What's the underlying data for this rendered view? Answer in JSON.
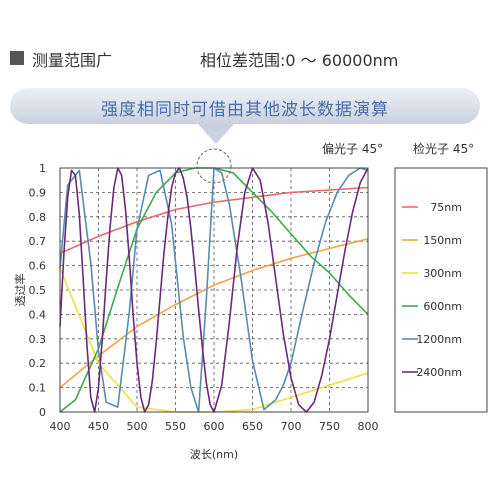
{
  "header": {
    "title": "测量范围广",
    "range": "相位差范围:0 ～ 60000nm"
  },
  "banner": {
    "text": "强度相同时可借由其他波长数据演算"
  },
  "polarizer_label": "偏光子 45°",
  "analyzer_label": "检光子 45°",
  "chart_data": {
    "type": "line",
    "xlabel": "波长(nm)",
    "ylabel": "透过率",
    "xlim": [
      400,
      800
    ],
    "ylim": [
      0,
      1
    ],
    "xticks": [
      400,
      450,
      500,
      550,
      600,
      650,
      700,
      750,
      800
    ],
    "yticks": [
      0,
      0.1,
      0.2,
      0.3,
      0.4,
      0.5,
      0.6,
      0.7,
      0.8,
      0.9,
      1
    ],
    "grid": true,
    "legend_position": "right",
    "series": [
      {
        "name": "75nm",
        "color": "#e86a6a",
        "x": [
          400,
          450,
          500,
          550,
          600,
          650,
          700,
          750,
          800
        ],
        "y": [
          0.65,
          0.72,
          0.78,
          0.83,
          0.86,
          0.88,
          0.9,
          0.91,
          0.92
        ]
      },
      {
        "name": "150nm",
        "color": "#f2a445",
        "x": [
          400,
          450,
          500,
          550,
          600,
          650,
          700,
          750,
          800
        ],
        "y": [
          0.1,
          0.23,
          0.35,
          0.44,
          0.52,
          0.58,
          0.63,
          0.67,
          0.71
        ]
      },
      {
        "name": "300nm",
        "color": "#f0e040",
        "x": [
          400,
          450,
          500,
          550,
          600,
          650,
          700,
          750,
          800
        ],
        "y": [
          0.59,
          0.2,
          0.02,
          0.0,
          0.0,
          0.01,
          0.06,
          0.11,
          0.16
        ]
      },
      {
        "name": "600nm",
        "color": "#3aaa4a",
        "x": [
          400,
          420,
          450,
          475,
          500,
          525,
          550,
          575,
          600,
          625,
          650,
          675,
          700,
          725,
          750,
          775,
          800
        ],
        "y": [
          0.0,
          0.05,
          0.26,
          0.51,
          0.75,
          0.9,
          0.98,
          1.0,
          1.0,
          0.98,
          0.9,
          0.82,
          0.73,
          0.64,
          0.57,
          0.48,
          0.4
        ]
      },
      {
        "name": "1200nm",
        "color": "#5b8ab0",
        "x": [
          400,
          410,
          425,
          440,
          450,
          460,
          475,
          490,
          500,
          515,
          530,
          545,
          560,
          570,
          580,
          590,
          600,
          610,
          620,
          635,
          650,
          665,
          680,
          690,
          700,
          715,
          730,
          745,
          760,
          775,
          790,
          800
        ],
        "y": [
          0.59,
          0.93,
          0.99,
          0.61,
          0.25,
          0.04,
          0.02,
          0.41,
          0.75,
          0.97,
          0.99,
          0.77,
          0.31,
          0.1,
          0.0,
          0.46,
          1.0,
          0.98,
          0.85,
          0.55,
          0.21,
          0.01,
          0.05,
          0.11,
          0.2,
          0.41,
          0.61,
          0.78,
          0.9,
          0.97,
          1.0,
          0.99
        ]
      },
      {
        "name": "2400nm",
        "color": "#6a2a7a",
        "x": [
          400,
          405,
          410,
          415,
          420,
          425,
          430,
          435,
          440,
          445,
          450,
          455,
          460,
          465,
          470,
          475,
          480,
          485,
          490,
          495,
          500,
          505,
          510,
          515,
          520,
          525,
          530,
          535,
          540,
          545,
          550,
          555,
          560,
          565,
          570,
          575,
          580,
          585,
          590,
          595,
          600,
          610,
          620,
          630,
          640,
          650,
          660,
          670,
          680,
          690,
          700,
          710,
          720,
          730,
          740,
          750,
          760,
          770,
          780,
          790,
          800
        ],
        "y": [
          0.35,
          0.65,
          0.88,
          0.99,
          0.97,
          0.81,
          0.55,
          0.27,
          0.06,
          0.0,
          0.1,
          0.3,
          0.54,
          0.76,
          0.92,
          1.0,
          0.97,
          0.83,
          0.63,
          0.4,
          0.2,
          0.06,
          0.0,
          0.03,
          0.13,
          0.29,
          0.47,
          0.65,
          0.8,
          0.92,
          0.98,
          1.0,
          0.96,
          0.88,
          0.75,
          0.59,
          0.42,
          0.26,
          0.12,
          0.03,
          0.0,
          0.11,
          0.37,
          0.67,
          0.9,
          1.0,
          0.95,
          0.78,
          0.55,
          0.32,
          0.14,
          0.03,
          0.0,
          0.04,
          0.15,
          0.3,
          0.48,
          0.66,
          0.82,
          0.94,
          1.0
        ]
      }
    ]
  }
}
